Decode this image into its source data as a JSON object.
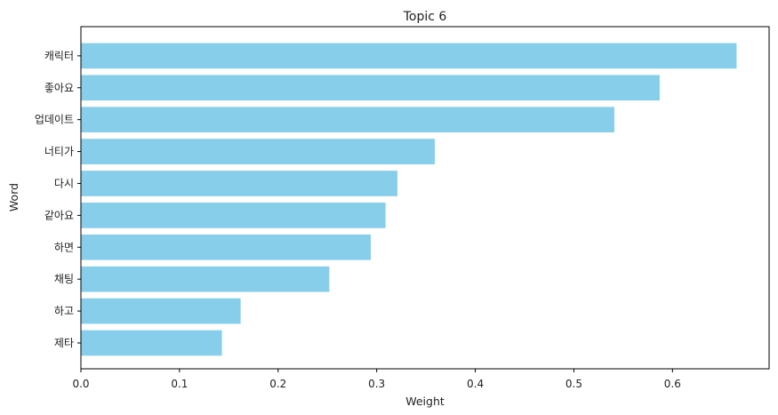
{
  "chart_data": {
    "type": "bar",
    "orientation": "horizontal",
    "title": "Topic 6",
    "xlabel": "Weight",
    "ylabel": "Word",
    "categories": [
      "캐릭터",
      "좋아요",
      "업데이트",
      "너티가",
      "다시",
      "같아요",
      "하면",
      "채팅",
      "하고",
      "제타"
    ],
    "values": [
      0.665,
      0.587,
      0.541,
      0.359,
      0.321,
      0.309,
      0.294,
      0.252,
      0.162,
      0.143
    ],
    "xlim": [
      0,
      0.698
    ],
    "xticks": [
      0.0,
      0.1,
      0.2,
      0.3,
      0.4,
      0.5,
      0.6
    ],
    "xtick_labels": [
      "0.0",
      "0.1",
      "0.2",
      "0.3",
      "0.4",
      "0.5",
      "0.6"
    ],
    "grid": false,
    "bar_color": "#87CEEB"
  }
}
